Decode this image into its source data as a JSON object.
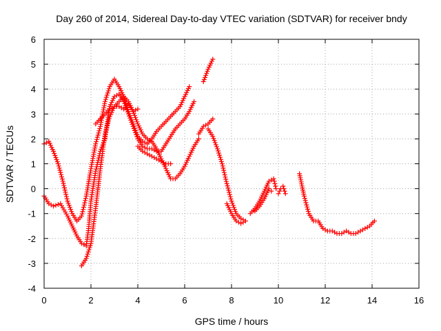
{
  "chart_data": {
    "type": "scatter",
    "title": "Day 260 of 2014, Sidereal Day-to-day VTEC variation (SDTVAR) for receiver bndy",
    "xlabel": "GPS time / hours",
    "ylabel": "SDTVAR / TECUs",
    "xlim": [
      0,
      16
    ],
    "ylim": [
      -4,
      6
    ],
    "xticks": [
      "0",
      "2",
      "4",
      "6",
      "8",
      "10",
      "12",
      "14",
      "16"
    ],
    "yticks": [
      "-4",
      "-3",
      "-2",
      "-1",
      "0",
      "1",
      "2",
      "3",
      "4",
      "5",
      "6"
    ],
    "grid": true,
    "marker": "plus",
    "color": "#ff0000",
    "series": [
      {
        "segments": [
          [
            [
              0.0,
              1.8
            ],
            [
              0.2,
              1.9
            ],
            [
              0.4,
              1.5
            ],
            [
              0.6,
              1.0
            ],
            [
              0.8,
              0.3
            ],
            [
              1.0,
              -0.5
            ],
            [
              1.2,
              -1.0
            ],
            [
              1.4,
              -1.3
            ],
            [
              1.6,
              -1.1
            ],
            [
              1.8,
              -0.3
            ],
            [
              2.0,
              0.8
            ],
            [
              2.2,
              1.8
            ],
            [
              2.4,
              2.5
            ],
            [
              2.6,
              3.5
            ],
            [
              2.8,
              4.1
            ],
            [
              3.0,
              4.4
            ],
            [
              3.2,
              4.1
            ],
            [
              3.4,
              3.7
            ],
            [
              3.6,
              3.1
            ],
            [
              3.8,
              2.6
            ],
            [
              4.0,
              2.1
            ],
            [
              4.2,
              1.9
            ],
            [
              4.4,
              1.8
            ],
            [
              4.6,
              2.0
            ],
            [
              4.8,
              2.3
            ],
            [
              5.0,
              2.5
            ],
            [
              5.2,
              2.7
            ],
            [
              5.4,
              2.9
            ],
            [
              5.6,
              3.1
            ],
            [
              5.8,
              3.3
            ],
            [
              6.0,
              3.7
            ],
            [
              6.2,
              4.1
            ]
          ],
          [
            [
              0.0,
              -0.3
            ],
            [
              0.2,
              -0.6
            ],
            [
              0.4,
              -0.7
            ],
            [
              0.7,
              -0.6
            ],
            [
              1.0,
              -1.1
            ],
            [
              1.2,
              -1.5
            ],
            [
              1.4,
              -1.9
            ],
            [
              1.6,
              -2.2
            ],
            [
              1.8,
              -2.3
            ],
            [
              1.9,
              -1.6
            ],
            [
              2.0,
              -0.5
            ],
            [
              2.2,
              0.7
            ],
            [
              2.4,
              1.5
            ],
            [
              2.6,
              2.0
            ],
            [
              2.8,
              3.3
            ],
            [
              3.0,
              3.7
            ],
            [
              3.2,
              3.8
            ],
            [
              3.4,
              3.5
            ],
            [
              3.6,
              3.0
            ],
            [
              3.8,
              2.5
            ],
            [
              4.0,
              2.0
            ],
            [
              4.2,
              1.7
            ],
            [
              4.4,
              1.6
            ],
            [
              4.6,
              1.6
            ],
            [
              4.8,
              1.5
            ],
            [
              5.0,
              1.5
            ],
            [
              5.2,
              1.8
            ],
            [
              5.4,
              2.1
            ],
            [
              5.6,
              2.4
            ],
            [
              5.8,
              2.6
            ],
            [
              6.0,
              2.8
            ],
            [
              6.2,
              3.1
            ],
            [
              6.4,
              3.5
            ]
          ],
          [
            [
              1.6,
              -3.1
            ],
            [
              1.8,
              -2.8
            ],
            [
              2.0,
              -2.2
            ],
            [
              2.2,
              -0.8
            ],
            [
              2.4,
              0.8
            ],
            [
              2.6,
              2.2
            ],
            [
              2.8,
              2.9
            ],
            [
              3.0,
              3.3
            ],
            [
              3.2,
              3.5
            ],
            [
              3.4,
              3.7
            ],
            [
              3.6,
              3.5
            ],
            [
              3.8,
              3.1
            ],
            [
              4.0,
              2.6
            ],
            [
              4.2,
              2.2
            ],
            [
              4.4,
              2.0
            ],
            [
              4.6,
              1.9
            ],
            [
              4.8,
              1.6
            ],
            [
              5.0,
              1.2
            ],
            [
              5.2,
              0.8
            ],
            [
              5.4,
              0.4
            ],
            [
              5.6,
              0.4
            ],
            [
              5.8,
              0.6
            ],
            [
              6.0,
              0.9
            ],
            [
              6.2,
              1.3
            ],
            [
              6.4,
              1.7
            ],
            [
              6.6,
              2.0
            ]
          ],
          [
            [
              2.2,
              2.6
            ],
            [
              2.4,
              2.8
            ],
            [
              2.6,
              3.0
            ],
            [
              2.8,
              3.2
            ],
            [
              3.0,
              3.3
            ],
            [
              3.2,
              3.3
            ],
            [
              3.4,
              3.2
            ],
            [
              3.6,
              3.4
            ],
            [
              3.8,
              3.1
            ],
            [
              4.0,
              3.2
            ]
          ],
          [
            [
              4.0,
              1.7
            ],
            [
              4.2,
              1.5
            ],
            [
              4.4,
              1.4
            ],
            [
              4.6,
              1.3
            ],
            [
              4.8,
              1.2
            ],
            [
              5.0,
              1.1
            ],
            [
              5.2,
              1.0
            ],
            [
              5.4,
              1.0
            ]
          ],
          [
            [
              6.6,
              2.2
            ],
            [
              6.8,
              2.5
            ],
            [
              7.0,
              2.6
            ],
            [
              7.2,
              2.8
            ]
          ],
          [
            [
              6.8,
              4.3
            ],
            [
              7.0,
              4.8
            ],
            [
              7.2,
              5.2
            ]
          ],
          [
            [
              7.0,
              2.4
            ],
            [
              7.2,
              2.1
            ],
            [
              7.4,
              1.6
            ],
            [
              7.6,
              1.0
            ],
            [
              7.8,
              0.2
            ],
            [
              8.0,
              -0.5
            ],
            [
              8.2,
              -1.0
            ],
            [
              8.4,
              -1.2
            ],
            [
              8.6,
              -1.3
            ],
            [
              8.4,
              -1.4
            ],
            [
              8.2,
              -1.3
            ],
            [
              8.0,
              -1.0
            ],
            [
              7.8,
              -0.6
            ]
          ],
          [
            [
              8.8,
              -1.0
            ],
            [
              9.0,
              -0.8
            ],
            [
              9.2,
              -0.5
            ],
            [
              9.4,
              -0.1
            ],
            [
              9.6,
              0.3
            ],
            [
              9.8,
              0.4
            ],
            [
              9.9,
              0.0
            ]
          ],
          [
            [
              9.0,
              -0.9
            ],
            [
              9.2,
              -0.7
            ],
            [
              9.4,
              -0.4
            ],
            [
              9.6,
              0.0
            ],
            [
              9.7,
              -0.1
            ]
          ],
          [
            [
              10.0,
              -0.2
            ],
            [
              10.1,
              0.0
            ],
            [
              10.2,
              0.1
            ],
            [
              10.3,
              -0.2
            ]
          ],
          [
            [
              10.9,
              0.6
            ],
            [
              11.1,
              -0.3
            ],
            [
              11.3,
              -1.0
            ],
            [
              11.5,
              -1.3
            ],
            [
              11.7,
              -1.3
            ],
            [
              11.9,
              -1.6
            ],
            [
              12.1,
              -1.7
            ],
            [
              12.3,
              -1.7
            ],
            [
              12.5,
              -1.8
            ],
            [
              12.7,
              -1.8
            ],
            [
              12.9,
              -1.7
            ],
            [
              13.1,
              -1.8
            ],
            [
              13.3,
              -1.8
            ],
            [
              13.5,
              -1.7
            ],
            [
              13.7,
              -1.6
            ],
            [
              13.9,
              -1.5
            ],
            [
              14.1,
              -1.3
            ]
          ]
        ]
      }
    ]
  }
}
